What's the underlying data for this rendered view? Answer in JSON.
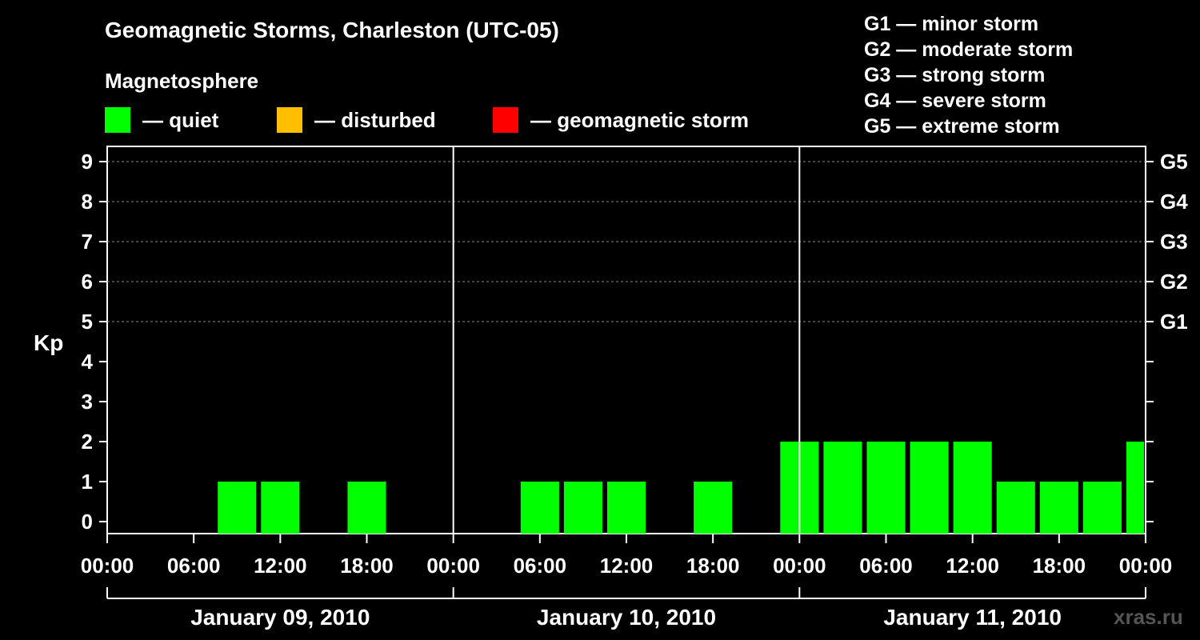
{
  "header": {
    "title": "Geomagnetic Storms, Charleston (UTC-05)",
    "magnetosphere_title": "Magnetosphere"
  },
  "legend": [
    {
      "label": "— quiet",
      "color": "#00ff00"
    },
    {
      "label": "— disturbed",
      "color": "#ffbf00"
    },
    {
      "label": "— geomagnetic storm",
      "color": "#ff0000"
    }
  ],
  "storm_scale": [
    "G1 — minor storm",
    "G2 — moderate storm",
    "G3 — strong storm",
    "G4 — severe storm",
    "G5 — extreme storm"
  ],
  "watermark": "xras.ru",
  "chart_data": {
    "type": "bar",
    "ylabel": "Kp",
    "ylim": [
      0,
      9
    ],
    "y_ticks": [
      "0",
      "1",
      "2",
      "3",
      "4",
      "5",
      "6",
      "7",
      "8",
      "9"
    ],
    "right_ticks": [
      {
        "kp": 5,
        "label": "G1"
      },
      {
        "kp": 6,
        "label": "G2"
      },
      {
        "kp": 7,
        "label": "G3"
      },
      {
        "kp": 8,
        "label": "G4"
      },
      {
        "kp": 9,
        "label": "G5"
      }
    ],
    "x_tick_labels": [
      "00:00",
      "06:00",
      "12:00",
      "18:00",
      "00:00",
      "06:00",
      "12:00",
      "18:00",
      "00:00",
      "06:00",
      "12:00",
      "18:00",
      "00:00"
    ],
    "days": [
      "January 09, 2010",
      "January 10, 2010",
      "January 11, 2010"
    ],
    "interval_hours": 3,
    "grid": "dashed at Kp 5-9",
    "series": [
      {
        "color": "#00ff00",
        "values": [
          0,
          0,
          0,
          1,
          1,
          0,
          1,
          0,
          0,
          0,
          1,
          1,
          1,
          0,
          1,
          0,
          2,
          2,
          2,
          2,
          2,
          1,
          1,
          1,
          2
        ]
      }
    ]
  }
}
